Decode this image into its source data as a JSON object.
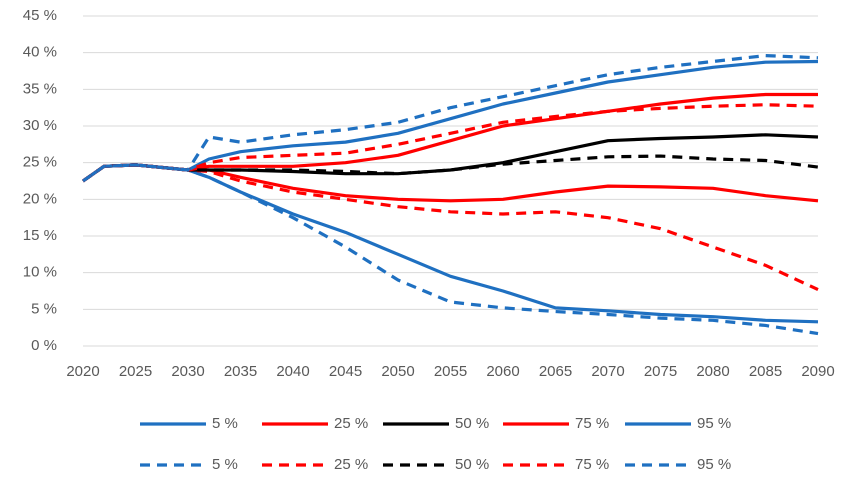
{
  "chart_data": {
    "type": "line",
    "x": [
      2020,
      2022,
      2025,
      2030,
      2032,
      2035,
      2040,
      2045,
      2050,
      2055,
      2060,
      2065,
      2070,
      2075,
      2080,
      2085,
      2090
    ],
    "xlim": [
      2020,
      2090
    ],
    "xticks": [
      2020,
      2025,
      2030,
      2035,
      2040,
      2045,
      2050,
      2055,
      2060,
      2065,
      2070,
      2075,
      2080,
      2085,
      2090
    ],
    "ylim": [
      0,
      45
    ],
    "yticks": [
      {
        "value": 0,
        "label": "0 %"
      },
      {
        "value": 5,
        "label": "5 %"
      },
      {
        "value": 10,
        "label": "10 %"
      },
      {
        "value": 15,
        "label": "15 %"
      },
      {
        "value": 20,
        "label": "20 %"
      },
      {
        "value": 25,
        "label": "25 %"
      },
      {
        "value": 30,
        "label": "30 %"
      },
      {
        "value": 35,
        "label": "35 %"
      },
      {
        "value": 40,
        "label": "40 %"
      },
      {
        "value": 45,
        "label": "45 %"
      }
    ],
    "grid": true,
    "legend": "bottom",
    "series": [
      {
        "name": "5 %",
        "color": "#1f70c1",
        "style": "solid",
        "values": [
          22.5,
          24.5,
          24.7,
          24,
          23,
          21,
          18,
          15.5,
          12.5,
          9.5,
          7.5,
          5.2,
          4.8,
          4.3,
          4,
          3.5,
          3.3
        ]
      },
      {
        "name": "25 %",
        "color": "#ff0000",
        "style": "solid",
        "values": [
          22.5,
          24.5,
          24.7,
          24,
          24,
          23,
          21.5,
          20.5,
          20,
          19.8,
          20,
          21,
          21.8,
          21.7,
          21.5,
          20.5,
          19.8
        ]
      },
      {
        "name": "50 %",
        "color": "#000000",
        "style": "solid",
        "values": [
          22.5,
          24.5,
          24.7,
          24,
          24,
          24,
          23.8,
          23.5,
          23.5,
          24,
          25,
          26.5,
          28,
          28.3,
          28.5,
          28.8,
          28.5
        ]
      },
      {
        "name": "75 %",
        "color": "#ff0000",
        "style": "solid",
        "values": [
          22.5,
          24.5,
          24.7,
          24,
          24.5,
          24.5,
          24.5,
          25,
          26,
          28,
          30,
          31,
          32,
          33,
          33.8,
          34.3,
          34.3
        ]
      },
      {
        "name": "95 %",
        "color": "#1f70c1",
        "style": "solid",
        "values": [
          22.5,
          24.5,
          24.7,
          24,
          25.5,
          26.5,
          27.3,
          27.8,
          29,
          31,
          33,
          34.5,
          36,
          37,
          38,
          38.7,
          38.8
        ]
      },
      {
        "name": "5 %",
        "color": "#1f70c1",
        "style": "dashed",
        "values": [
          22.5,
          24.5,
          24.7,
          24,
          23,
          21,
          17.5,
          13.5,
          9,
          6,
          5.2,
          4.7,
          4.3,
          3.8,
          3.5,
          2.8,
          1.7
        ]
      },
      {
        "name": "25 %",
        "color": "#ff0000",
        "style": "dashed",
        "values": [
          22.5,
          24.5,
          24.7,
          24,
          23.8,
          22.5,
          21,
          20,
          19,
          18.3,
          18,
          18.3,
          17.5,
          16,
          13.5,
          11,
          7.7
        ]
      },
      {
        "name": "50 %",
        "color": "#000000",
        "style": "dashed",
        "values": [
          22.5,
          24.5,
          24.7,
          24,
          24,
          24,
          24,
          23.8,
          23.5,
          24,
          24.8,
          25.3,
          25.8,
          25.9,
          25.5,
          25.3,
          24.4
        ]
      },
      {
        "name": "75 %",
        "color": "#ff0000",
        "style": "dashed",
        "values": [
          22.5,
          24.5,
          24.7,
          24,
          25,
          25.7,
          26,
          26.3,
          27.5,
          29,
          30.5,
          31.3,
          32,
          32.4,
          32.7,
          32.9,
          32.7
        ]
      },
      {
        "name": "95 %",
        "color": "#1f70c1",
        "style": "dashed",
        "values": [
          22.5,
          24.5,
          24.7,
          24,
          28.5,
          27.8,
          28.8,
          29.5,
          30.5,
          32.5,
          34,
          35.5,
          37,
          38,
          38.8,
          39.6,
          39.3
        ]
      }
    ]
  }
}
